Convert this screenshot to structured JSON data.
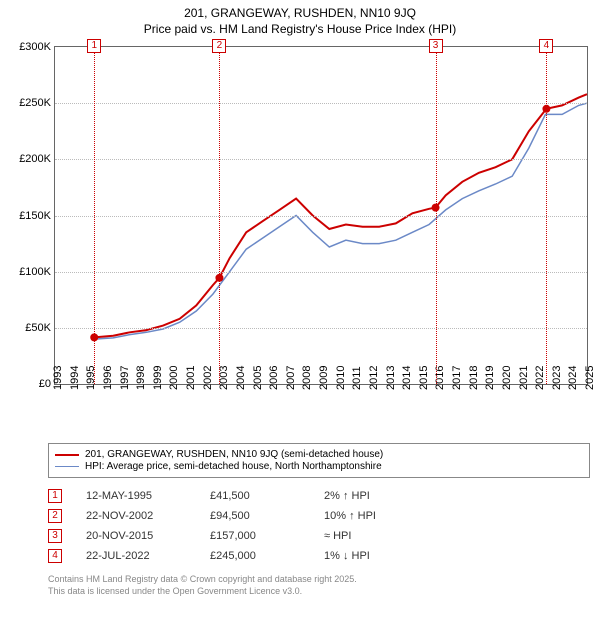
{
  "title1": "201, GRANGEWAY, RUSHDEN, NN10 9JQ",
  "title2": "Price paid vs. HM Land Registry's House Price Index (HPI)",
  "chart": {
    "type": "line",
    "ylim": [
      0,
      300000
    ],
    "ytick_step": 50000,
    "ytick_labels": [
      "£0",
      "£50K",
      "£100K",
      "£150K",
      "£200K",
      "£250K",
      "£300K"
    ],
    "x_years": [
      1993,
      1994,
      1995,
      1996,
      1997,
      1998,
      1999,
      2000,
      2001,
      2002,
      2003,
      2004,
      2005,
      2006,
      2007,
      2008,
      2009,
      2010,
      2011,
      2012,
      2013,
      2014,
      2015,
      2016,
      2017,
      2018,
      2019,
      2020,
      2021,
      2022,
      2023,
      2024,
      2025
    ],
    "grid_color": "#bbbbbb",
    "background_color": "#ffffff",
    "series": [
      {
        "name": "paid",
        "label": "201, GRANGEWAY, RUSHDEN, NN10 9JQ (semi-detached house)",
        "color": "#cc0000",
        "width": 2,
        "points": [
          [
            1995.36,
            41500
          ],
          [
            1996.5,
            43000
          ],
          [
            1997.5,
            46000
          ],
          [
            1998.5,
            48000
          ],
          [
            1999.5,
            52000
          ],
          [
            2000.5,
            58000
          ],
          [
            2001.5,
            70000
          ],
          [
            2002.5,
            88000
          ],
          [
            2002.89,
            94500
          ],
          [
            2003.5,
            112000
          ],
          [
            2004.5,
            135000
          ],
          [
            2005.5,
            145000
          ],
          [
            2006.5,
            155000
          ],
          [
            2007.5,
            165000
          ],
          [
            2008.5,
            150000
          ],
          [
            2009.5,
            138000
          ],
          [
            2010.5,
            142000
          ],
          [
            2011.5,
            140000
          ],
          [
            2012.5,
            140000
          ],
          [
            2013.5,
            143000
          ],
          [
            2014.5,
            152000
          ],
          [
            2015.5,
            156000
          ],
          [
            2015.89,
            157000
          ],
          [
            2016.5,
            168000
          ],
          [
            2017.5,
            180000
          ],
          [
            2018.5,
            188000
          ],
          [
            2019.5,
            193000
          ],
          [
            2020.5,
            200000
          ],
          [
            2021.5,
            225000
          ],
          [
            2022.56,
            245000
          ],
          [
            2023.5,
            248000
          ],
          [
            2024.5,
            255000
          ],
          [
            2025.0,
            258000
          ]
        ]
      },
      {
        "name": "hpi",
        "label": "HPI: Average price, semi-detached house, North Northamptonshire",
        "color": "#6b89c7",
        "width": 1.5,
        "points": [
          [
            1995.36,
            40000
          ],
          [
            1996.5,
            41000
          ],
          [
            1997.5,
            44000
          ],
          [
            1998.5,
            46000
          ],
          [
            1999.5,
            49000
          ],
          [
            2000.5,
            55000
          ],
          [
            2001.5,
            65000
          ],
          [
            2002.5,
            80000
          ],
          [
            2003.5,
            100000
          ],
          [
            2004.5,
            120000
          ],
          [
            2005.5,
            130000
          ],
          [
            2006.5,
            140000
          ],
          [
            2007.5,
            150000
          ],
          [
            2008.5,
            135000
          ],
          [
            2009.5,
            122000
          ],
          [
            2010.5,
            128000
          ],
          [
            2011.5,
            125000
          ],
          [
            2012.5,
            125000
          ],
          [
            2013.5,
            128000
          ],
          [
            2014.5,
            135000
          ],
          [
            2015.5,
            142000
          ],
          [
            2016.5,
            155000
          ],
          [
            2017.5,
            165000
          ],
          [
            2018.5,
            172000
          ],
          [
            2019.5,
            178000
          ],
          [
            2020.5,
            185000
          ],
          [
            2021.5,
            210000
          ],
          [
            2022.5,
            240000
          ],
          [
            2023.5,
            240000
          ],
          [
            2024.5,
            248000
          ],
          [
            2025.0,
            250000
          ]
        ]
      }
    ],
    "sale_markers": [
      {
        "n": "1",
        "x": 1995.36,
        "y": 41500
      },
      {
        "n": "2",
        "x": 2002.89,
        "y": 94500
      },
      {
        "n": "3",
        "x": 2015.89,
        "y": 157000
      },
      {
        "n": "4",
        "x": 2022.56,
        "y": 245000
      }
    ]
  },
  "legend": {
    "items": [
      {
        "color": "#cc0000",
        "width": 2,
        "label_key": "chart.series.0.label"
      },
      {
        "color": "#6b89c7",
        "width": 1.5,
        "label_key": "chart.series.1.label"
      }
    ]
  },
  "sales": [
    {
      "n": "1",
      "date": "12-MAY-1995",
      "price": "£41,500",
      "diff": "2% ↑ HPI"
    },
    {
      "n": "2",
      "date": "22-NOV-2002",
      "price": "£94,500",
      "diff": "10% ↑ HPI"
    },
    {
      "n": "3",
      "date": "20-NOV-2015",
      "price": "£157,000",
      "diff": "≈ HPI"
    },
    {
      "n": "4",
      "date": "22-JUL-2022",
      "price": "£245,000",
      "diff": "1% ↓ HPI"
    }
  ],
  "footer1": "Contains HM Land Registry data © Crown copyright and database right 2025.",
  "footer2": "This data is licensed under the Open Government Licence v3.0."
}
